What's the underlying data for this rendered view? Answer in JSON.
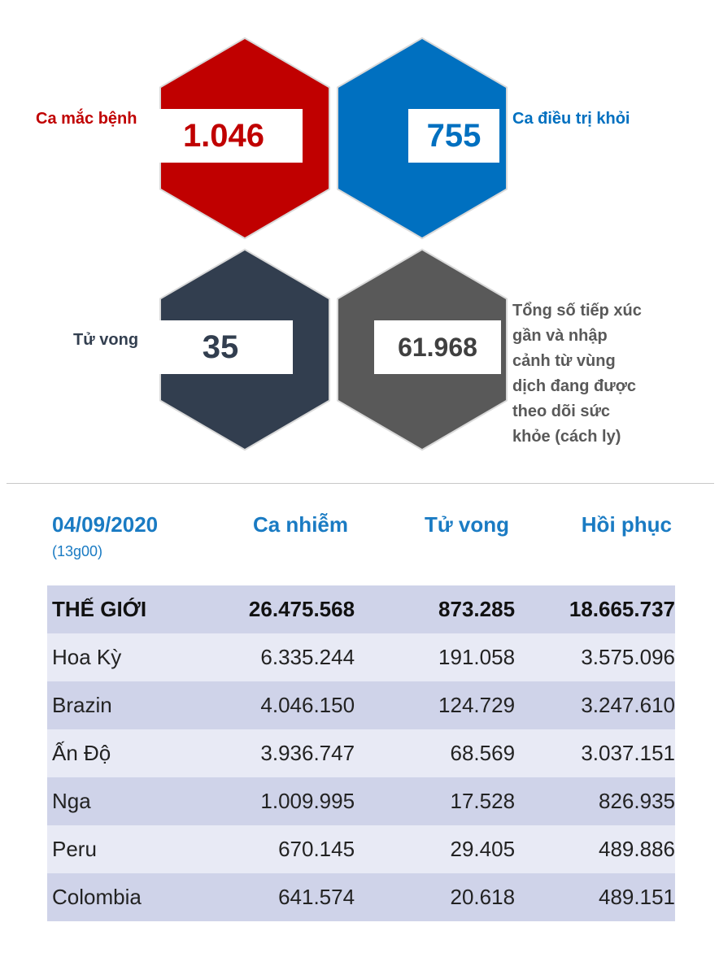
{
  "stats": {
    "cases": {
      "label": "Ca mắc bệnh",
      "value": "1.046",
      "color": "#c00000"
    },
    "recovered": {
      "label": "Ca điều trị khỏi",
      "value": "755",
      "color": "#0070c0"
    },
    "deaths": {
      "label": "Tử vong",
      "value": "35",
      "color": "#323e4f"
    },
    "monitored": {
      "label_lines": [
        "Tổng số tiếp xúc",
        "gần và nhập",
        "cảnh từ vùng",
        "dịch đang được",
        "theo dõi sức",
        "khỏe (cách ly)"
      ],
      "value": "61.968",
      "color": "#595959"
    }
  },
  "table": {
    "date": "04/09/2020",
    "time": "(13g00)",
    "headers": [
      "Ca nhiễm",
      "Tử vong",
      "Hồi phục"
    ],
    "rows": [
      [
        "THẾ GIỚI",
        "26.475.568",
        "873.285",
        "18.665.737"
      ],
      [
        "Hoa Kỳ",
        "6.335.244",
        "191.058",
        "3.575.096"
      ],
      [
        "Brazin",
        "4.046.150",
        "124.729",
        "3.247.610"
      ],
      [
        "Ấn Độ",
        "3.936.747",
        "68.569",
        "3.037.151"
      ],
      [
        "Nga",
        "1.009.995",
        "17.528",
        "826.935"
      ],
      [
        "Peru",
        "670.145",
        "29.405",
        "489.886"
      ],
      [
        "Colombia",
        "641.574",
        "20.618",
        "489.151"
      ]
    ]
  }
}
